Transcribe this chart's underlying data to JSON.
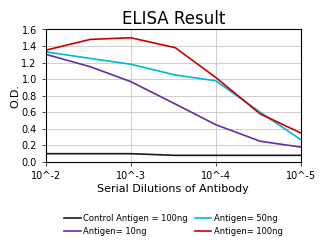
{
  "title": "ELISA Result",
  "ylabel": "O.D.",
  "xlabel": "Serial Dilutions of Antibody",
  "xlim_left": 0.01,
  "xlim_right": 1e-05,
  "ylim": [
    0,
    1.6
  ],
  "yticks": [
    0,
    0.2,
    0.4,
    0.6,
    0.8,
    1.0,
    1.2,
    1.4,
    1.6
  ],
  "xticks": [
    0.01,
    0.001,
    0.0001,
    1e-05
  ],
  "xticklabels": [
    "10^-2",
    "10^-3",
    "10^-4",
    "10^-5"
  ],
  "lines": [
    {
      "label": "Control Antigen = 100ng",
      "color": "#1a1a1a",
      "x": [
        0.01,
        0.003,
        0.001,
        0.0003,
        0.0001,
        3e-05,
        1e-05
      ],
      "y": [
        0.1,
        0.1,
        0.1,
        0.08,
        0.08,
        0.08,
        0.08
      ]
    },
    {
      "label": "Antigen= 10ng",
      "color": "#6030a0",
      "x": [
        0.01,
        0.003,
        0.001,
        0.0003,
        0.0001,
        3e-05,
        1e-05
      ],
      "y": [
        1.3,
        1.15,
        0.97,
        0.7,
        0.45,
        0.25,
        0.18
      ]
    },
    {
      "label": "Antigen= 50ng",
      "color": "#00b8d4",
      "x": [
        0.01,
        0.003,
        0.001,
        0.0003,
        0.0001,
        3e-05,
        1e-05
      ],
      "y": [
        1.33,
        1.25,
        1.18,
        1.05,
        0.98,
        0.6,
        0.27
      ]
    },
    {
      "label": "Antigen= 100ng",
      "color": "#cc0000",
      "x": [
        0.01,
        0.003,
        0.001,
        0.0003,
        0.0001,
        3e-05,
        1e-05
      ],
      "y": [
        1.35,
        1.48,
        1.5,
        1.38,
        1.02,
        0.58,
        0.35
      ]
    }
  ],
  "legend_ncol": 2,
  "title_fontsize": 12,
  "axis_fontsize": 8,
  "tick_fontsize": 7,
  "legend_fontsize": 6,
  "background_color": "#ffffff",
  "grid_color": "#bbbbbb"
}
